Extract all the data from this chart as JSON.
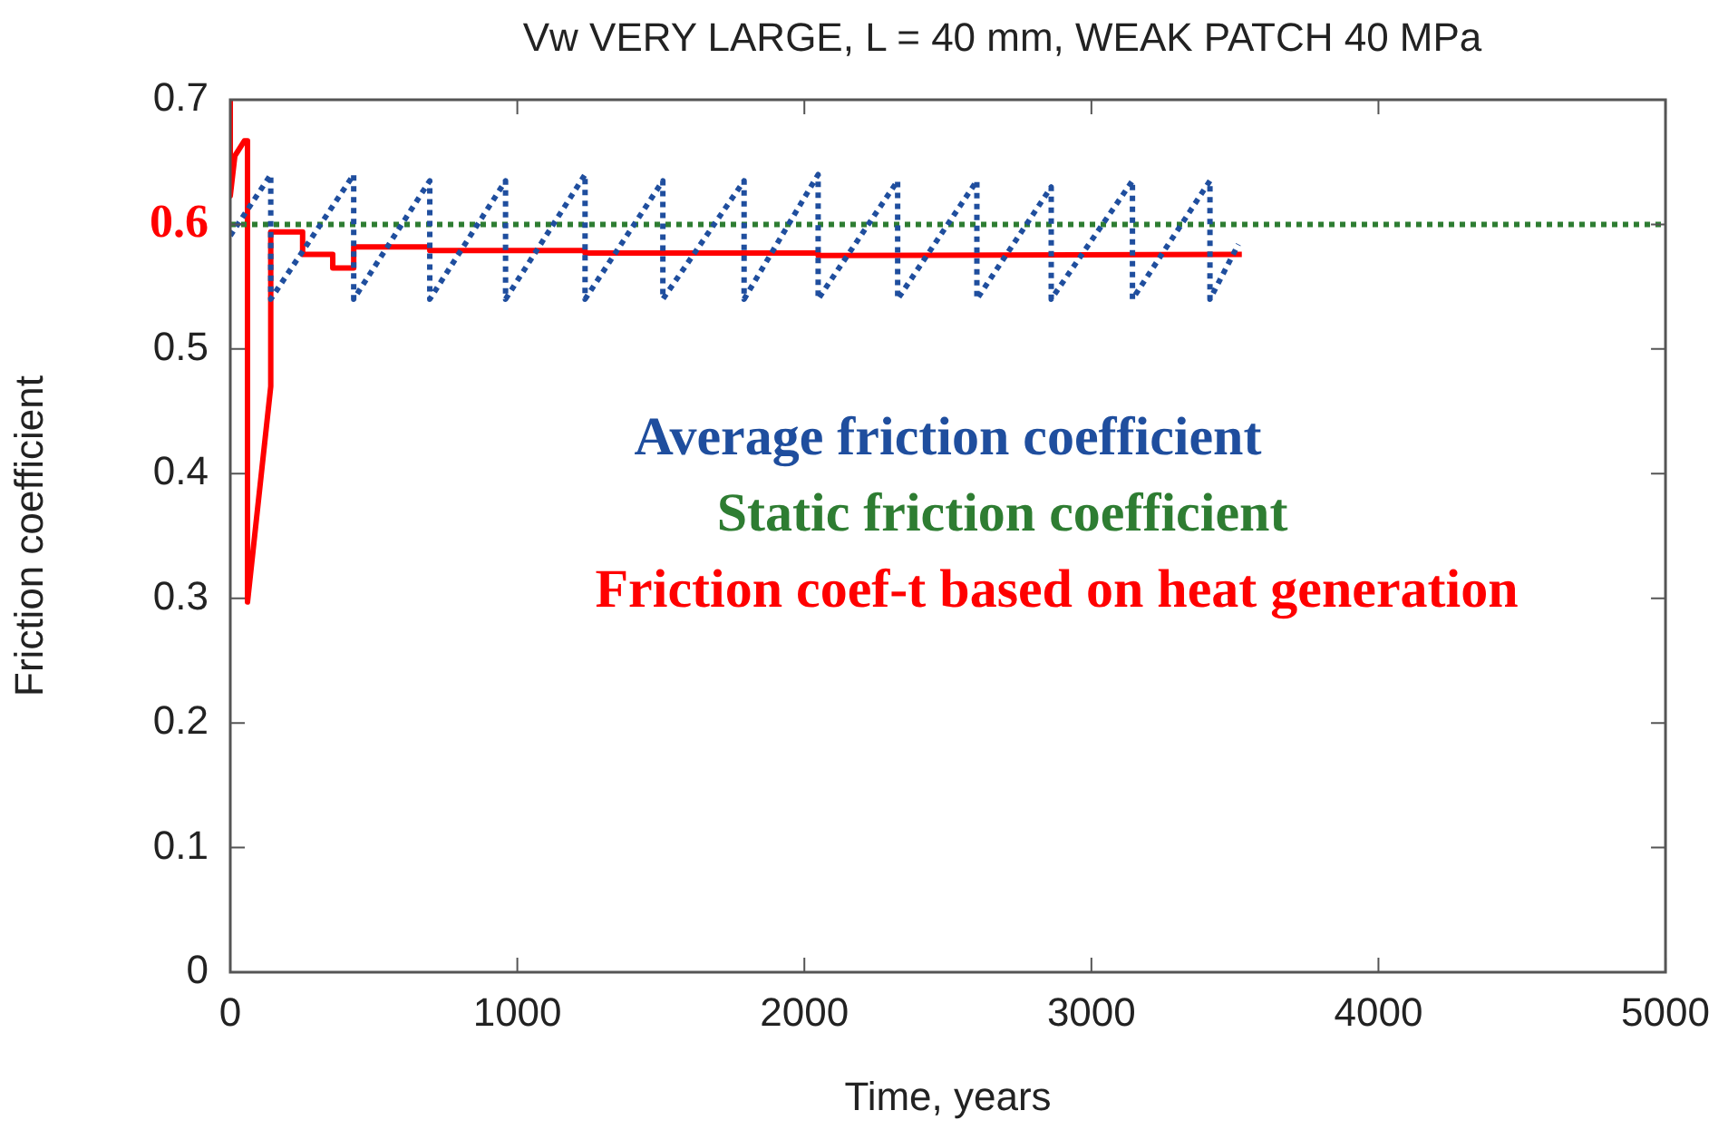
{
  "chart_data": {
    "type": "line",
    "title": "Vw VERY LARGE, L = 40 mm, WEAK PATCH 40 MPa",
    "xlabel": "Time, years",
    "ylabel": "Friction coefficient",
    "xlim": [
      0,
      5000
    ],
    "xticks": [
      0,
      1000,
      2000,
      3000,
      4000,
      5000
    ],
    "ylim": [
      0,
      0.7
    ],
    "yticks": [
      0,
      0.1,
      0.2,
      0.3,
      0.4,
      0.5,
      0.6,
      0.7
    ],
    "grid": false,
    "legend": "right",
    "marker": "none",
    "series": [
      {
        "name": "Average friction coefficient",
        "color": "#1f4e9e",
        "line_style": "dotted",
        "x": [
          0,
          141,
          141,
          430,
          430,
          695,
          695,
          959,
          959,
          1236,
          1236,
          1507,
          1507,
          1790,
          1790,
          2048,
          2048,
          2325,
          2325,
          2601,
          2601,
          2860,
          2860,
          3143,
          3143,
          3413,
          3413,
          3512
        ],
        "values": [
          0.591,
          0.64,
          0.54,
          0.64,
          0.54,
          0.635,
          0.54,
          0.635,
          0.54,
          0.64,
          0.54,
          0.635,
          0.54,
          0.635,
          0.54,
          0.64,
          0.54,
          0.635,
          0.54,
          0.635,
          0.54,
          0.63,
          0.54,
          0.635,
          0.54,
          0.635,
          0.54,
          0.584
        ]
      },
      {
        "name": "Static friction coefficient",
        "color": "#2e7d32",
        "line_style": "dotted",
        "x": [
          0,
          5000
        ],
        "values": [
          0.6,
          0.6
        ]
      },
      {
        "name": "Friction coef-t based on heat generation",
        "color": "#ff0000",
        "line_style": "solid",
        "x": [
          0,
          0,
          16,
          49,
          60,
          60,
          141,
          141,
          252,
          252,
          357,
          357,
          430,
          430,
          695,
          695,
          1236,
          1236,
          2048,
          2048,
          3524
        ],
        "values": [
          0.7,
          0.623,
          0.655,
          0.667,
          0.667,
          0.297,
          0.47,
          0.594,
          0.594,
          0.576,
          0.576,
          0.565,
          0.565,
          0.582,
          0.582,
          0.579,
          0.579,
          0.577,
          0.577,
          0.575,
          0.576
        ]
      }
    ]
  }
}
